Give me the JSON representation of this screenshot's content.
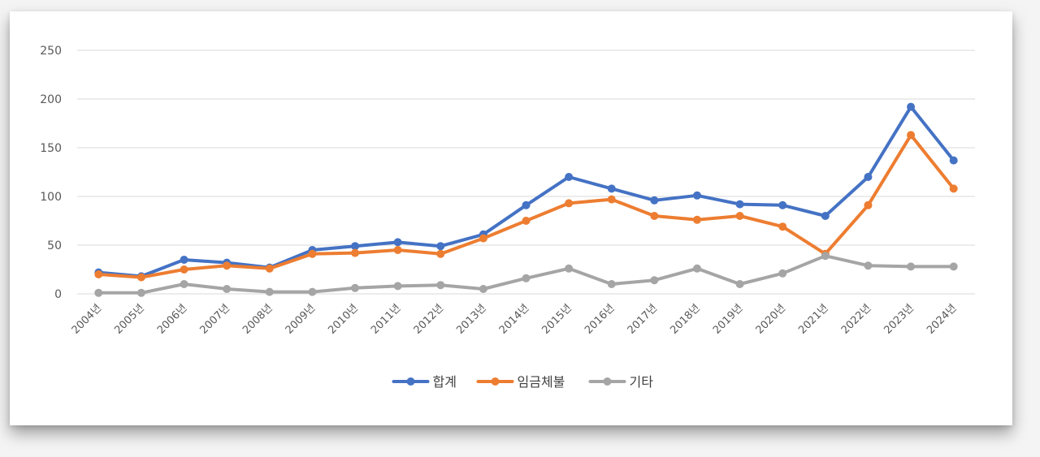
{
  "chart_data": {
    "type": "line",
    "categories": [
      "2004년",
      "2005년",
      "2006년",
      "2007년",
      "2008년",
      "2009년",
      "2010년",
      "2011년",
      "2012년",
      "2013년",
      "2014년",
      "2015년",
      "2016년",
      "2017년",
      "2018년",
      "2019년",
      "2020년",
      "2021년",
      "2022년",
      "2023년",
      "2024년"
    ],
    "series": [
      {
        "name": "합계",
        "color": "#4472c4",
        "values": [
          22,
          18,
          35,
          32,
          27,
          45,
          49,
          53,
          49,
          61,
          91,
          120,
          108,
          96,
          101,
          92,
          91,
          80,
          120,
          192,
          137
        ]
      },
      {
        "name": "임금체불",
        "color": "#ed7d31",
        "values": [
          20,
          17,
          25,
          29,
          26,
          41,
          42,
          45,
          41,
          57,
          75,
          93,
          97,
          80,
          76,
          80,
          69,
          41,
          91,
          163,
          108
        ]
      },
      {
        "name": "기타",
        "color": "#a5a5a5",
        "values": [
          1,
          1,
          10,
          5,
          2,
          2,
          6,
          8,
          9,
          5,
          16,
          26,
          10,
          14,
          26,
          10,
          21,
          39,
          29,
          28,
          28
        ]
      }
    ],
    "yticks": [
      0,
      50,
      100,
      150,
      200,
      250
    ],
    "ylim": [
      0,
      250
    ],
    "grid": true,
    "legend_position": "bottom",
    "title": "",
    "xlabel": "",
    "ylabel": ""
  }
}
